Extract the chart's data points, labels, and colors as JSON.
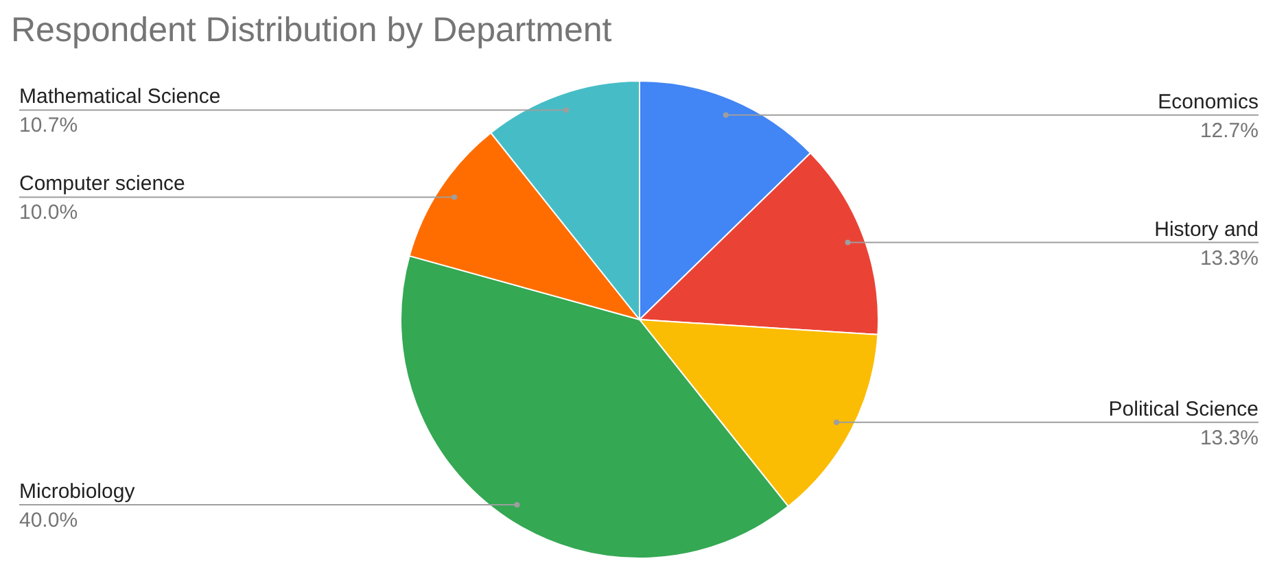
{
  "chart_data": {
    "type": "pie",
    "title": "Respondent Distribution by Department",
    "categories": [
      "Economics",
      "History and",
      "Political Science",
      "Microbiology",
      "Computer science",
      "Mathematical Science"
    ],
    "values": [
      12.7,
      13.3,
      13.3,
      40.0,
      10.0,
      10.7
    ],
    "value_labels": [
      "12.7%",
      "13.3%",
      "13.3%",
      "40.0%",
      "10.0%",
      "10.7%"
    ],
    "colors": [
      "#4285f4",
      "#ea4335",
      "#fbbc04",
      "#34a853",
      "#ff6d01",
      "#46bdc6"
    ]
  }
}
